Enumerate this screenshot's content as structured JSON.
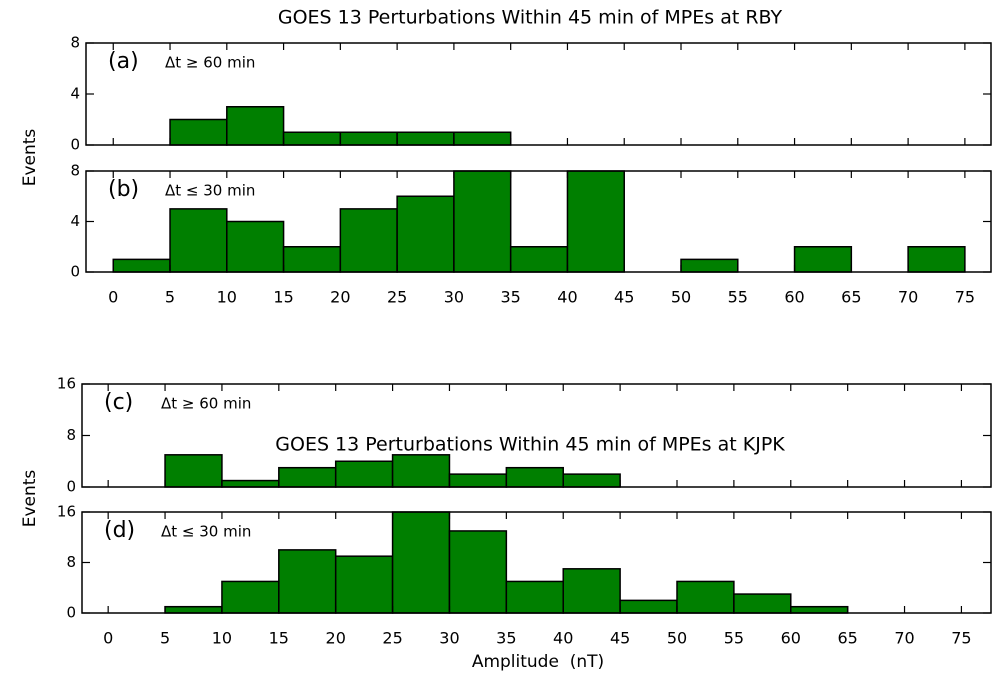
{
  "chart_data": [
    {
      "type": "histogram",
      "title": "GOES 13 Perturbations Within 45 min of MPEs at RBY",
      "ylabel": "Events",
      "panel_label": "(a)",
      "annotation": "Δt ≥ 60 min",
      "bins": [
        0,
        5,
        10,
        15,
        20,
        25,
        30,
        35,
        40,
        45,
        50,
        55,
        60,
        65,
        70,
        75
      ],
      "values": [
        0,
        2,
        3,
        1,
        1,
        1,
        1,
        0,
        0,
        0,
        0,
        0,
        0,
        0,
        0
      ],
      "color": "#007f00",
      "xlim": [
        -2.4,
        77.3
      ],
      "ylim": [
        0,
        8
      ],
      "yticks": [
        0,
        4,
        8
      ]
    },
    {
      "type": "histogram",
      "panel_label": "(b)",
      "annotation": "Δt ≤ 30 min",
      "bins": [
        0,
        5,
        10,
        15,
        20,
        25,
        30,
        35,
        40,
        45,
        50,
        55,
        60,
        65,
        70,
        75
      ],
      "values": [
        1,
        5,
        4,
        2,
        5,
        6,
        8,
        2,
        8,
        0,
        1,
        0,
        2,
        0,
        2
      ],
      "color": "#007f00",
      "xlim": [
        -2.4,
        77.3
      ],
      "ylim": [
        0,
        8
      ],
      "yticks": [
        0,
        4,
        8
      ],
      "xticks": [
        0,
        5,
        10,
        15,
        20,
        25,
        30,
        35,
        40,
        45,
        50,
        55,
        60,
        65,
        70,
        75
      ]
    },
    {
      "type": "histogram",
      "title": "GOES 13 Perturbations Within 45 min of MPEs at KJPK",
      "ylabel": "Events",
      "panel_label": "(c)",
      "annotation": "Δt ≥ 60 min",
      "bins": [
        0,
        5,
        10,
        15,
        20,
        25,
        30,
        35,
        40,
        45,
        50,
        55,
        60,
        65,
        70,
        75
      ],
      "values": [
        0,
        5,
        1,
        3,
        4,
        5,
        2,
        3,
        2,
        0,
        0,
        0,
        0,
        0,
        0
      ],
      "color": "#007f00",
      "xlim": [
        -2.3,
        77.6
      ],
      "ylim": [
        0,
        16
      ],
      "yticks": [
        0,
        8,
        16
      ]
    },
    {
      "type": "histogram",
      "panel_label": "(d)",
      "annotation": "Δt ≤ 30 min",
      "xlabel": "Amplitude  (nT)",
      "bins": [
        0,
        5,
        10,
        15,
        20,
        25,
        30,
        35,
        40,
        45,
        50,
        55,
        60,
        65,
        70,
        75
      ],
      "values": [
        0,
        1,
        5,
        10,
        9,
        16,
        13,
        5,
        7,
        2,
        5,
        3,
        1,
        0,
        0
      ],
      "color": "#007f00",
      "xlim": [
        -2.3,
        77.6
      ],
      "ylim": [
        0,
        16
      ],
      "yticks": [
        0,
        8,
        16
      ],
      "xticks": [
        0,
        5,
        10,
        15,
        20,
        25,
        30,
        35,
        40,
        45,
        50,
        55,
        60,
        65,
        70,
        75
      ]
    }
  ]
}
